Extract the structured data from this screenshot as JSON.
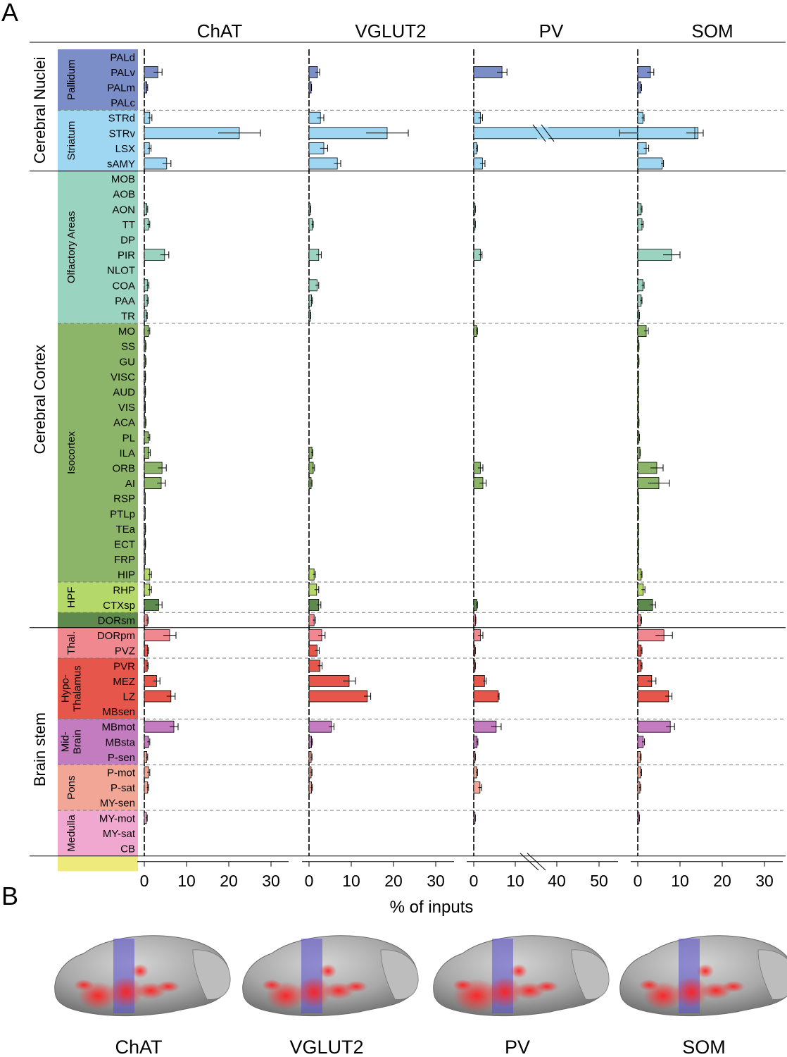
{
  "panel_a_label": "A",
  "panel_b_label": "B",
  "x_axis_label": "% of inputs",
  "colors": {
    "Pallidum": "#7b8ec8",
    "Striatum": "#9fd6f2",
    "Olfactory": "#9ad3bf",
    "Isocortex": "#8cb56a",
    "HPF": "#b5d86a",
    "CTXsp": "#5e8a4e",
    "Thalamus": "#f08890",
    "Hypothalamus": "#e6564a",
    "Midbrain": "#c47cc0",
    "Pons": "#f2a696",
    "Medulla": "#f0a8d0",
    "CB": "#eeea7c"
  },
  "major_groups": [
    {
      "label": "Cerebral Nuclei",
      "start": 0,
      "end": 7
    },
    {
      "label": "Cerebral Cortex",
      "start": 8,
      "end": 37
    },
    {
      "label": "Brain stem",
      "start": 38,
      "end": 53
    }
  ],
  "subgroups": [
    {
      "label": "Pallidum",
      "start": 0,
      "end": 3,
      "color_key": "Pallidum",
      "lines": [
        "Pallidum"
      ]
    },
    {
      "label": "Striatum",
      "start": 4,
      "end": 7,
      "color_key": "Striatum",
      "lines": [
        "Striatum"
      ]
    },
    {
      "label": "Olfactory Areas",
      "start": 8,
      "end": 17,
      "color_key": "Olfactory",
      "lines": [
        "Olfactory Areas"
      ]
    },
    {
      "label": "Isocortex",
      "start": 18,
      "end": 34,
      "color_key": "Isocortex",
      "lines": [
        "Isocortex"
      ]
    },
    {
      "label": "HPF",
      "start": 35,
      "end": 36,
      "color_key": "HPF",
      "lines": [
        "HPF"
      ]
    },
    {
      "label": "",
      "start": 37,
      "end": 37,
      "color_key": "CTXsp",
      "lines": []
    },
    {
      "label": "Thal.",
      "start": 38,
      "end": 39,
      "color_key": "Thalamus",
      "lines": [
        "Thal."
      ]
    },
    {
      "label": "Hypo-Thalamus",
      "start": 40,
      "end": 43,
      "color_key": "Hypothalamus",
      "lines": [
        "Hypo-",
        "Thalamus"
      ]
    },
    {
      "label": "Mid-Brain",
      "start": 44,
      "end": 46,
      "color_key": "Midbrain",
      "lines": [
        "Mid-",
        "Brain"
      ]
    },
    {
      "label": "Pons",
      "start": 47,
      "end": 49,
      "color_key": "Pons",
      "lines": [
        "Pons"
      ]
    },
    {
      "label": "Medulla",
      "start": 50,
      "end": 52,
      "color_key": "Medulla",
      "lines": [
        "Medulla"
      ]
    },
    {
      "label": "",
      "start": 53,
      "end": 53,
      "color_key": "CB",
      "lines": []
    }
  ],
  "separators": {
    "solid_after": [
      7,
      37,
      52
    ],
    "dashed_after": [
      3,
      17,
      34,
      36,
      39,
      43,
      46,
      49
    ]
  },
  "chart_data": {
    "type": "bar",
    "orientation": "horizontal",
    "xlabel": "% of inputs",
    "categories": [
      "PALd",
      "PALv",
      "PALm",
      "PALc",
      "STRd",
      "STRv",
      "LSX",
      "sAMY",
      "MOB",
      "AOB",
      "AON",
      "TT",
      "DP",
      "PIR",
      "NLOT",
      "COA",
      "PAA",
      "TR",
      "MO",
      "SS",
      "GU",
      "VISC",
      "AUD",
      "VIS",
      "ACA",
      "PL",
      "ILA",
      "ORB",
      "AI",
      "RSP",
      "PTLp",
      "TEa",
      "ECT",
      "FRP",
      "HIP",
      "RHP",
      "CTXsp",
      "DORsm",
      "DORpm",
      "PVZ",
      "PVR",
      "MEZ",
      "LZ",
      "MBsen",
      "MBmot",
      "MBsta",
      "P-sen",
      "P-mot",
      "P-sat",
      "MY-sen",
      "MY-mot",
      "MY-sat",
      "CB"
    ],
    "category_colors": [
      "Pallidum",
      "Pallidum",
      "Pallidum",
      "Pallidum",
      "Striatum",
      "Striatum",
      "Striatum",
      "Striatum",
      "Olfactory",
      "Olfactory",
      "Olfactory",
      "Olfactory",
      "Olfactory",
      "Olfactory",
      "Olfactory",
      "Olfactory",
      "Olfactory",
      "Olfactory",
      "Isocortex",
      "Isocortex",
      "Isocortex",
      "Isocortex",
      "Isocortex",
      "Isocortex",
      "Isocortex",
      "Isocortex",
      "Isocortex",
      "Isocortex",
      "Isocortex",
      "Isocortex",
      "Isocortex",
      "Isocortex",
      "Isocortex",
      "Isocortex",
      "HPF",
      "HPF",
      "CTXsp",
      "Thalamus",
      "Thalamus",
      "Hypothalamus",
      "Hypothalamus",
      "Hypothalamus",
      "Hypothalamus",
      "Midbrain",
      "Midbrain",
      "Midbrain",
      "Pons",
      "Pons",
      "Pons",
      "Medulla",
      "Medulla",
      "Medulla",
      "CB"
    ],
    "series": [
      {
        "name": "ChAT",
        "xlim": [
          0,
          35
        ],
        "ticks": [
          "0",
          "10",
          "20",
          "30"
        ],
        "tick_values": [
          0,
          10,
          20,
          30
        ],
        "values": [
          0,
          3.2,
          0.6,
          0,
          1.3,
          22.5,
          1.2,
          5.3,
          0,
          0,
          0.6,
          1.0,
          0,
          4.8,
          0,
          0.8,
          0.7,
          0.5,
          1.0,
          0.3,
          0.3,
          0.2,
          0.2,
          0.1,
          0.3,
          1.0,
          1.1,
          4.2,
          4.0,
          0.1,
          0.1,
          0.2,
          0.2,
          0.1,
          1.3,
          1.3,
          3.4,
          0.7,
          6.0,
          0.8,
          0.7,
          2.9,
          6.3,
          0,
          7.0,
          1.0,
          0.6,
          1.0,
          0.8,
          0,
          0.5,
          0,
          0
        ],
        "errors": [
          0,
          1.0,
          0.2,
          0,
          0.5,
          5.0,
          0.4,
          1.0,
          0,
          0,
          0.2,
          0.3,
          0,
          1.0,
          0,
          0.3,
          0.2,
          0.2,
          0.3,
          0.1,
          0.1,
          0.1,
          0.1,
          0.1,
          0.1,
          0.3,
          0.3,
          1.0,
          1.0,
          0,
          0,
          0.1,
          0.1,
          0,
          0.4,
          0.4,
          0.8,
          0.2,
          1.5,
          0.2,
          0.2,
          0.8,
          1.0,
          0,
          1.0,
          0.3,
          0.2,
          0.3,
          0.2,
          0,
          0.2,
          0,
          0
        ]
      },
      {
        "name": "VGLUT2",
        "xlim": [
          0,
          35
        ],
        "ticks": [
          "0",
          "10",
          "20",
          "30"
        ],
        "tick_values": [
          0,
          10,
          20,
          30
        ],
        "values": [
          0,
          2.0,
          0.5,
          0,
          2.7,
          18.5,
          3.5,
          6.7,
          0,
          0,
          0.3,
          0.8,
          0,
          2.3,
          0,
          1.9,
          0.6,
          0.3,
          0,
          0,
          0,
          0,
          0,
          0,
          0,
          0,
          0.7,
          1.0,
          0.5,
          0,
          0,
          0,
          0,
          0,
          1.2,
          1.8,
          2.3,
          1.2,
          3.0,
          1.9,
          2.6,
          9.5,
          13.8,
          0,
          5.3,
          0.6,
          0.5,
          0.5,
          0.6,
          0,
          0,
          0,
          0
        ],
        "errors": [
          0,
          0.5,
          0.1,
          0,
          0.8,
          5.0,
          0.9,
          0.8,
          0,
          0,
          0.1,
          0.2,
          0,
          0.6,
          0,
          0.4,
          0.2,
          0.1,
          0,
          0,
          0,
          0,
          0,
          0,
          0,
          0,
          0.2,
          0.3,
          0.2,
          0,
          0,
          0,
          0,
          0,
          0.3,
          0.5,
          0.5,
          0.3,
          0.8,
          0.5,
          0.5,
          1.5,
          0.8,
          0,
          0.6,
          0.2,
          0.2,
          0.2,
          0.2,
          0,
          0,
          0,
          0
        ]
      },
      {
        "name": "PV",
        "xlim": [
          0,
          55
        ],
        "ticks": [
          "0",
          "10",
          "40",
          "50"
        ],
        "tick_values": [
          0,
          10,
          40,
          50
        ],
        "axis_break": [
          15,
          35
        ],
        "values": [
          0,
          6.8,
          0,
          0,
          1.6,
          54,
          0.7,
          2.1,
          0,
          0,
          0.3,
          0.3,
          0,
          1.6,
          0,
          0,
          0,
          0,
          0.7,
          0,
          0,
          0,
          0,
          0,
          0,
          0,
          0,
          1.6,
          2.2,
          0,
          0,
          0,
          0,
          0,
          0,
          0,
          0.7,
          0.4,
          1.6,
          0.3,
          0.3,
          2.6,
          5.9,
          0,
          5.4,
          0.8,
          0.3,
          0.7,
          1.5,
          0,
          0.3,
          0,
          0
        ],
        "errors": [
          0,
          1.2,
          0,
          0,
          0.5,
          1.2,
          0.2,
          0.6,
          0,
          0,
          0.1,
          0.1,
          0,
          0.4,
          0,
          0,
          0,
          0,
          0.2,
          0,
          0,
          0,
          0,
          0,
          0,
          0,
          0,
          0.6,
          0.8,
          0,
          0,
          0,
          0,
          0,
          0,
          0,
          0.2,
          0.1,
          0.6,
          0.1,
          0.1,
          0.4,
          0.2,
          0,
          1.2,
          0.2,
          0.1,
          0.2,
          0.4,
          0,
          0.1,
          0,
          0
        ]
      },
      {
        "name": "SOM",
        "xlim": [
          0,
          35
        ],
        "ticks": [
          "0",
          "10",
          "20",
          "30"
        ],
        "tick_values": [
          0,
          10,
          20,
          30
        ],
        "values": [
          0,
          3.0,
          0.7,
          0,
          1.2,
          13.5,
          2.0,
          5.8,
          0,
          0,
          0.8,
          1.0,
          0,
          8.0,
          0,
          1.2,
          0.8,
          0.3,
          2.0,
          0.2,
          0.2,
          0.1,
          0.1,
          0.1,
          0.2,
          0.3,
          0.5,
          4.5,
          5.0,
          0.1,
          0.1,
          0.1,
          0.1,
          0.1,
          0.8,
          1.3,
          3.5,
          0.7,
          6.2,
          0.8,
          0.8,
          3.3,
          7.3,
          0,
          7.7,
          1.3,
          0.6,
          0.7,
          0.5,
          0,
          0.3,
          0,
          0
        ],
        "errors": [
          0,
          0.8,
          0.2,
          0,
          0.3,
          2.0,
          0.6,
          0.3,
          0,
          0,
          0.2,
          0.3,
          0,
          2.0,
          0,
          0.3,
          0.2,
          0.1,
          0.5,
          0.1,
          0.1,
          0,
          0,
          0,
          0.1,
          0.1,
          0.1,
          1.5,
          2.5,
          0,
          0,
          0,
          0,
          0,
          0.2,
          0.4,
          0.7,
          0.2,
          2.0,
          0.2,
          0.2,
          1.0,
          0.8,
          0,
          1.0,
          0.3,
          0.2,
          0.2,
          0.2,
          0,
          0.1,
          0,
          0
        ]
      }
    ]
  },
  "brain_labels": [
    "ChAT",
    "VGLUT2",
    "PV",
    "SOM"
  ]
}
